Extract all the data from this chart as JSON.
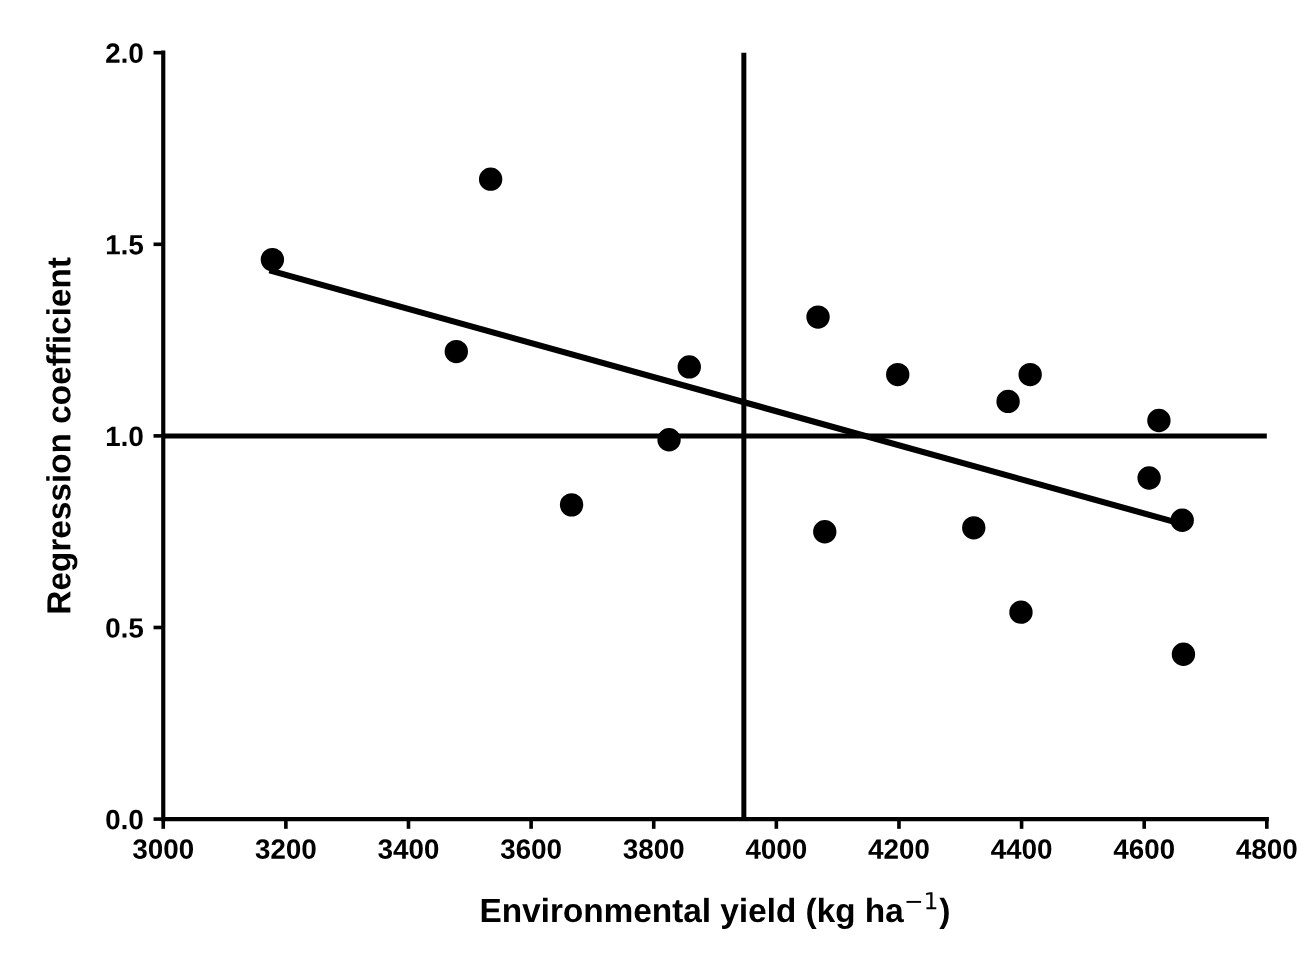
{
  "chart_data": {
    "type": "scatter",
    "xlabel": "Environmental yield (kg ha$^{−1}$)",
    "ylabel": "Regression coefficient",
    "xlim": [
      3000,
      4800
    ],
    "xticks": [
      3000,
      3200,
      3400,
      3600,
      3800,
      4000,
      4200,
      4400,
      4600,
      4800
    ],
    "ylim": [
      0,
      2
    ],
    "yticks": [
      {
        "value": 0,
        "label": "0.0"
      },
      {
        "value": 0.5,
        "label": "0.5"
      },
      {
        "value": 1,
        "label": "1.0"
      },
      {
        "value": 1.5,
        "label": "1.5"
      },
      {
        "value": 2,
        "label": "2.0"
      }
    ],
    "grid": false,
    "legend": false,
    "series": [
      {
        "color": "#000000",
        "marker": "circle",
        "x": [
          3178,
          3478,
          3534,
          3666,
          3825,
          3858,
          4068,
          4079,
          4198,
          4322,
          4378,
          4414,
          4399,
          4624,
          4608,
          4662,
          4664
        ],
        "values": [
          1.46,
          1.22,
          1.67,
          0.82,
          0.99,
          1.18,
          1.31,
          0.75,
          1.16,
          0.76,
          1.09,
          1.16,
          0.54,
          1.04,
          0.89,
          0.78,
          0.43
        ]
      },
      {
        "type": "line",
        "color": "#000000",
        "marker": "none",
        "line_style": "solid",
        "x": [
          3178,
          4662
        ],
        "values": [
          1.43,
          0.77
        ]
      }
    ],
    "ref_lines": [
      {
        "axis": "x",
        "value": 3947,
        "color": "#000000",
        "line_style": "solid"
      },
      {
        "axis": "y",
        "value": 1.0,
        "color": "#000000",
        "line_style": "solid"
      }
    ]
  }
}
